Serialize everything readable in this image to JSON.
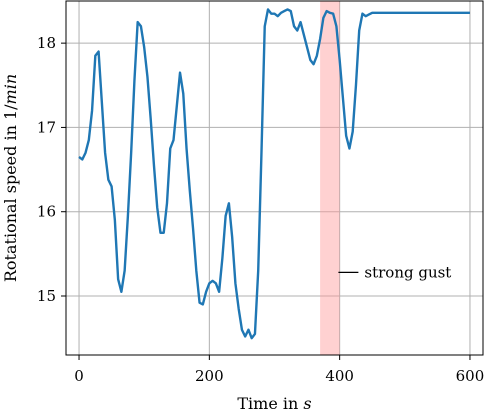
{
  "chart_data": {
    "type": "line",
    "xlabel": "Time in s",
    "ylabel": "Rotational speed in 1/min",
    "xlim": [
      -20,
      620
    ],
    "ylim": [
      14.3,
      18.5
    ],
    "xticks": [
      "0",
      "200",
      "400",
      "600"
    ],
    "yticks": [
      "15",
      "16",
      "17",
      "18"
    ],
    "xtick_values": [
      0,
      200,
      400,
      600
    ],
    "ytick_values": [
      15,
      16,
      17,
      18
    ],
    "grid": true,
    "legend": "none",
    "line_color": "#1f77b4",
    "highlight_color": "#ff9999",
    "highlight_span": [
      370,
      400
    ],
    "annotation": {
      "text": "strong gust",
      "x": 395,
      "y": 15.28
    },
    "series": [
      {
        "x": [
          0,
          5,
          10,
          15,
          20,
          25,
          30,
          35,
          40,
          45,
          50,
          55,
          60,
          65,
          70,
          75,
          80,
          85,
          90,
          95,
          100,
          105,
          110,
          115,
          120,
          125,
          130,
          135,
          140,
          145,
          150,
          155,
          160,
          165,
          170,
          175,
          180,
          185,
          190,
          195,
          200,
          205,
          210,
          215,
          220,
          225,
          230,
          235,
          240,
          245,
          250,
          255,
          260,
          265,
          270,
          275,
          280,
          285,
          290,
          295,
          300,
          305,
          310,
          315,
          320,
          325,
          330,
          335,
          340,
          345,
          350,
          355,
          360,
          365,
          370,
          375,
          380,
          385,
          390,
          395,
          400,
          405,
          410,
          415,
          420,
          425,
          430,
          435,
          440,
          445,
          450,
          455,
          460,
          465,
          470,
          475,
          480,
          485,
          490,
          495,
          500,
          505,
          510,
          515,
          520,
          525,
          530,
          535,
          540,
          545,
          550,
          555,
          560,
          565,
          570,
          575,
          580,
          585,
          590,
          595,
          600
        ],
        "values": [
          16.65,
          16.62,
          16.7,
          16.85,
          17.2,
          17.85,
          17.9,
          17.3,
          16.7,
          16.38,
          16.3,
          15.9,
          15.2,
          15.05,
          15.3,
          15.95,
          16.7,
          17.55,
          18.25,
          18.2,
          17.95,
          17.6,
          17.1,
          16.55,
          16.05,
          15.75,
          15.75,
          16.1,
          16.75,
          16.85,
          17.25,
          17.65,
          17.4,
          16.75,
          16.25,
          15.8,
          15.3,
          14.92,
          14.9,
          15.05,
          15.15,
          15.18,
          15.15,
          15.05,
          15.45,
          15.95,
          16.1,
          15.7,
          15.15,
          14.85,
          14.6,
          14.52,
          14.6,
          14.5,
          14.55,
          15.3,
          16.7,
          18.2,
          18.4,
          18.35,
          18.35,
          18.32,
          18.36,
          18.38,
          18.4,
          18.38,
          18.2,
          18.15,
          18.25,
          18.1,
          17.95,
          17.8,
          17.75,
          17.85,
          18.05,
          18.3,
          18.38,
          18.36,
          18.35,
          18.2,
          17.8,
          17.35,
          16.9,
          16.75,
          16.95,
          17.5,
          18.15,
          18.35,
          18.32,
          18.34,
          18.36,
          18.36,
          18.36,
          18.36,
          18.36,
          18.36,
          18.36,
          18.36,
          18.36,
          18.36,
          18.36,
          18.36,
          18.36,
          18.36,
          18.36,
          18.36,
          18.36,
          18.36,
          18.36,
          18.36,
          18.36,
          18.36,
          18.36,
          18.36,
          18.36,
          18.36,
          18.36,
          18.36,
          18.36,
          18.36,
          18.36
        ]
      }
    ]
  }
}
